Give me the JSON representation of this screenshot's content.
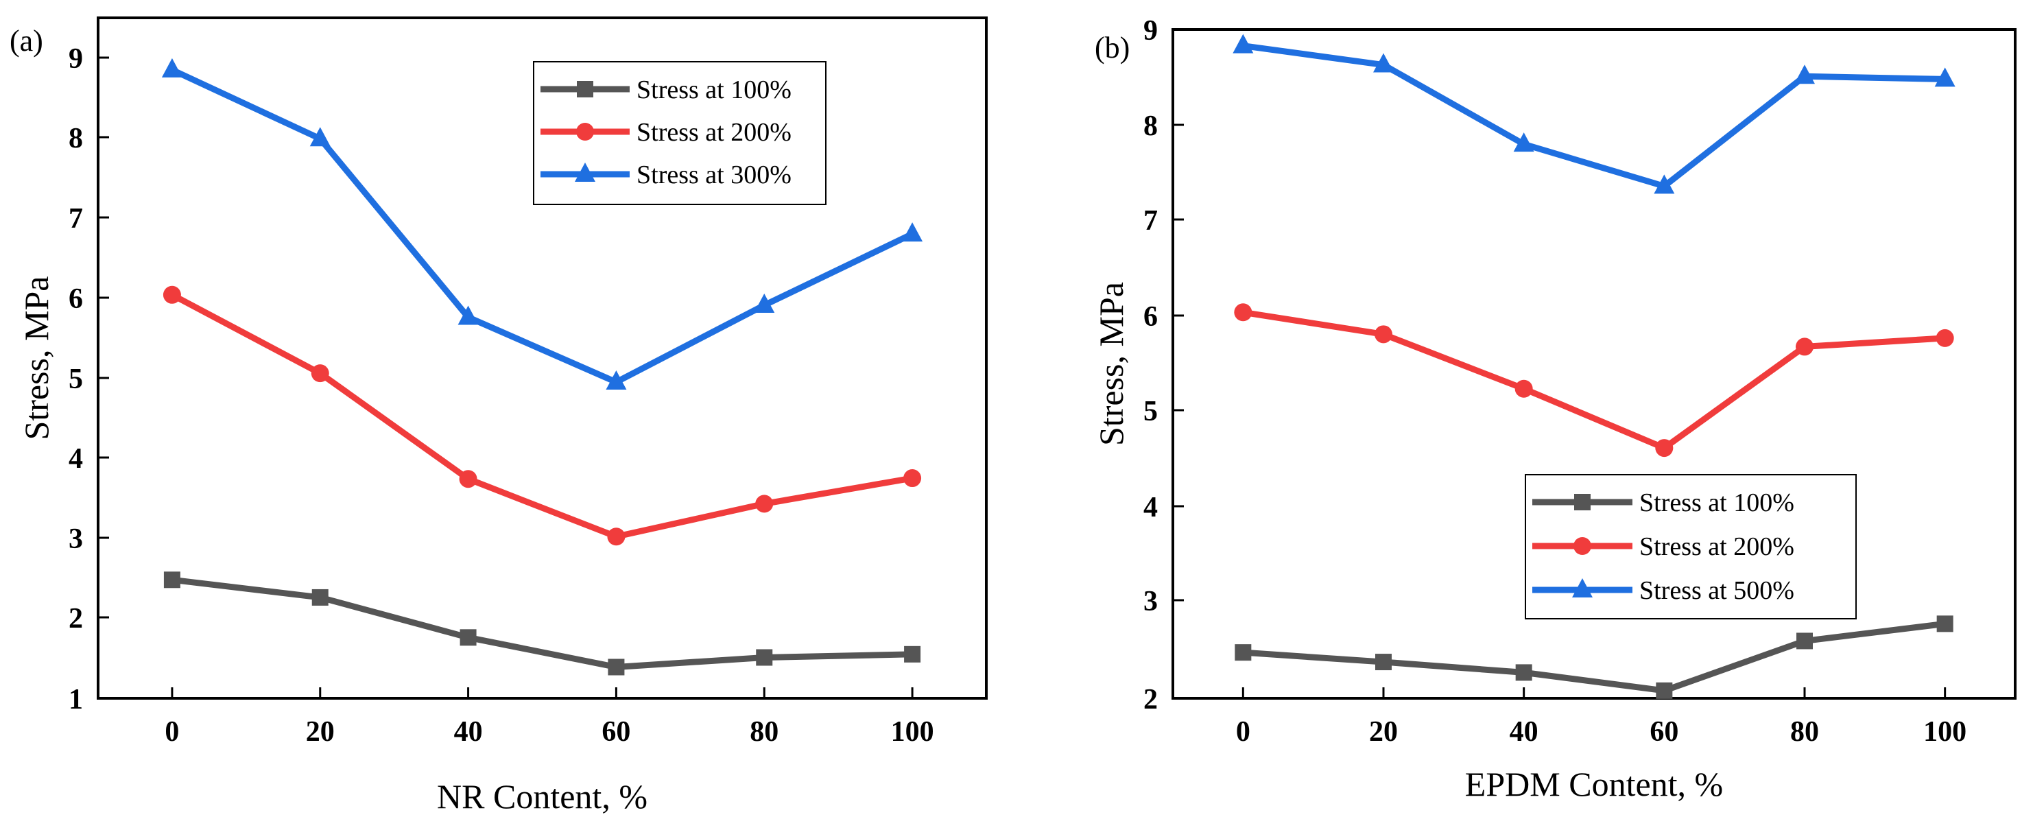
{
  "chart_data": [
    {
      "type": "line",
      "panel_label": "(a)",
      "xlabel": "NR Content, %",
      "ylabel": "Stress, MPa",
      "x": [
        0,
        20,
        40,
        60,
        80,
        100
      ],
      "xlim": [
        -10,
        110
      ],
      "ylim": [
        1,
        9.5
      ],
      "xticks": [
        "0",
        "20",
        "40",
        "60",
        "80",
        "100"
      ],
      "yticks": [
        "1",
        "2",
        "3",
        "4",
        "5",
        "6",
        "7",
        "8",
        "9"
      ],
      "grid": false,
      "legend_position": "top-right",
      "series": [
        {
          "name": "Stress at 100%",
          "color": "#555555",
          "marker": "square",
          "values": [
            2.48,
            2.26,
            1.76,
            1.39,
            1.51,
            1.55
          ]
        },
        {
          "name": "Stress at 200%",
          "color": "#f03c3c",
          "marker": "circle",
          "values": [
            6.04,
            5.06,
            3.74,
            3.02,
            3.43,
            3.75
          ]
        },
        {
          "name": "Stress at 300%",
          "color": "#1f6fe0",
          "marker": "triangle",
          "values": [
            8.85,
            7.99,
            5.76,
            4.95,
            5.91,
            6.8
          ]
        }
      ]
    },
    {
      "type": "line",
      "panel_label": "(b)",
      "xlabel": "EPDM Content, %",
      "ylabel": "Stress, MPa",
      "x": [
        0,
        20,
        40,
        60,
        80,
        100
      ],
      "xlim": [
        -10,
        110
      ],
      "ylim": [
        2,
        9
      ],
      "xticks": [
        "0",
        "20",
        "40",
        "60",
        "80",
        "100"
      ],
      "yticks": [
        "2",
        "3",
        "4",
        "5",
        "6",
        "7",
        "8",
        "9"
      ],
      "grid": false,
      "legend_position": "bottom-right",
      "series": [
        {
          "name": "Stress at 100%",
          "color": "#555555",
          "marker": "square",
          "values": [
            2.48,
            2.38,
            2.27,
            2.08,
            2.6,
            2.78
          ]
        },
        {
          "name": "Stress at 200%",
          "color": "#f03c3c",
          "marker": "circle",
          "values": [
            6.04,
            5.81,
            5.24,
            4.62,
            5.68,
            5.77
          ]
        },
        {
          "name": "Stress at 500%",
          "color": "#1f6fe0",
          "marker": "triangle",
          "values": [
            8.83,
            8.63,
            7.8,
            7.36,
            8.51,
            8.48
          ]
        }
      ]
    }
  ]
}
